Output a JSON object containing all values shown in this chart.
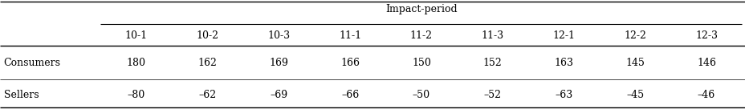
{
  "title": "Impact-period",
  "col_headers": [
    "10-1",
    "10-2",
    "10-3",
    "11-1",
    "11-2",
    "11-3",
    "12-1",
    "12-2",
    "12-3"
  ],
  "row_labels": [
    "Consumers",
    "Sellers"
  ],
  "data": [
    [
      "180",
      "162",
      "169",
      "166",
      "150",
      "152",
      "163",
      "145",
      "146"
    ],
    [
      "–80",
      "–62",
      "–69",
      "–66",
      "–50",
      "–52",
      "–63",
      "–45",
      "–46"
    ]
  ],
  "background_color": "#ffffff",
  "font_size": 9.0,
  "header_font_size": 9.0
}
